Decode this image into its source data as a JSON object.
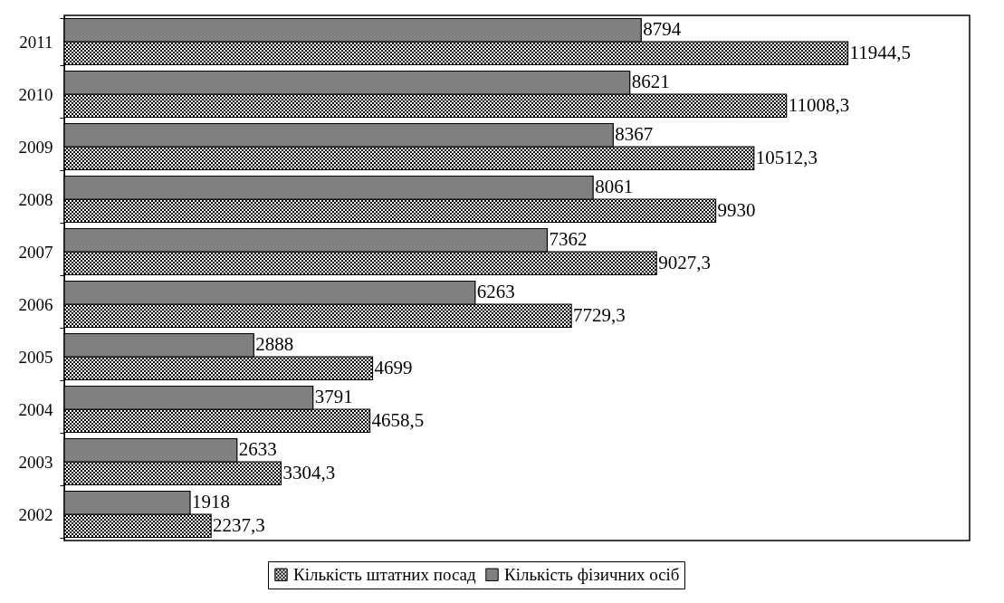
{
  "chart_data": {
    "type": "bar",
    "orientation": "horizontal",
    "categories": [
      "2011",
      "2010",
      "2009",
      "2008",
      "2007",
      "2006",
      "2005",
      "2004",
      "2003",
      "2002"
    ],
    "xlim": [
      0,
      13800
    ],
    "tick_labels": "y",
    "legend": "bottom",
    "series": [
      {
        "name": "Кількість штатних посад",
        "color": "#000000",
        "values": [
          11944.5,
          11008.3,
          10512.3,
          9930,
          9027.3,
          7729.3,
          4699,
          4658.5,
          3304.3,
          2237.3
        ],
        "value_labels": [
          "11944,5",
          "11008,3",
          "10512,3",
          "9930",
          "9027,3",
          "7729,3",
          "4699",
          "4658,5",
          "3304,3",
          "2237,3"
        ]
      },
      {
        "name": "Кількість фізичних осіб",
        "color": "#808080",
        "values": [
          8794,
          8621,
          8367,
          8061,
          7362,
          6263,
          2888,
          3791,
          2633,
          1918
        ],
        "value_labels": [
          "8794",
          "8621",
          "8367",
          "8061",
          "7362",
          "6263",
          "2888",
          "3791",
          "2633",
          "1918"
        ]
      }
    ]
  }
}
